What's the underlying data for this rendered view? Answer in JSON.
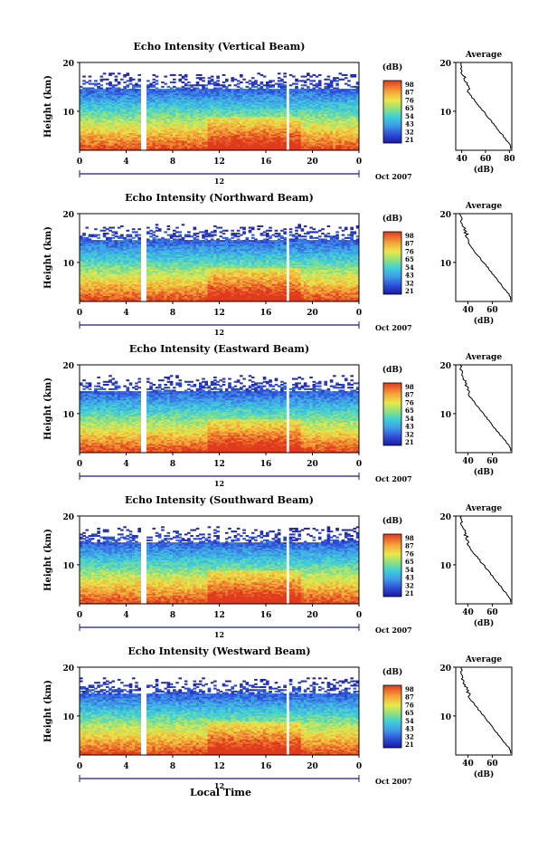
{
  "chart_data": {
    "type": "heatmap",
    "panels": [
      {
        "title": "Echo Intensity (Vertical Beam)",
        "avg_ticks": [
          "40",
          "60",
          "80"
        ],
        "avg_xlim": [
          35,
          82
        ]
      },
      {
        "title": "Echo Intensity (Northward Beam)",
        "avg_ticks": [
          "40",
          "60"
        ],
        "avg_xlim": [
          30,
          76
        ]
      },
      {
        "title": "Echo Intensity (Eastward Beam)",
        "avg_ticks": [
          "40",
          "60"
        ],
        "avg_xlim": [
          30,
          76
        ]
      },
      {
        "title": "Echo Intensity (Southward Beam)",
        "avg_ticks": [
          "40",
          "60"
        ],
        "avg_xlim": [
          30,
          76
        ]
      },
      {
        "title": "Echo Intensity (Westward Beam)",
        "avg_ticks": [
          "40",
          "60"
        ],
        "avg_xlim": [
          30,
          76
        ]
      }
    ],
    "ylabel": "Height (km)",
    "y_ticks": [
      "20",
      "10"
    ],
    "ylim": [
      2,
      20
    ],
    "x_ticks": [
      "0",
      "4",
      "8",
      "12",
      "16",
      "20",
      "0"
    ],
    "xlim": [
      0,
      24
    ],
    "date_label": "12",
    "month_label": "Oct 2007",
    "xlabel": "Local Time",
    "colorbar": {
      "unit": "(dB)",
      "ticks": [
        "98",
        "87",
        "76",
        "65",
        "54",
        "43",
        "32",
        "21"
      ],
      "range": [
        21,
        98
      ]
    },
    "average": {
      "title": "Average",
      "xlabel": "(dB)",
      "y_ticks": [
        "20",
        "10"
      ]
    },
    "data_gaps_hours": [
      [
        5.3,
        5.7
      ],
      [
        17.8,
        18.1
      ]
    ]
  }
}
